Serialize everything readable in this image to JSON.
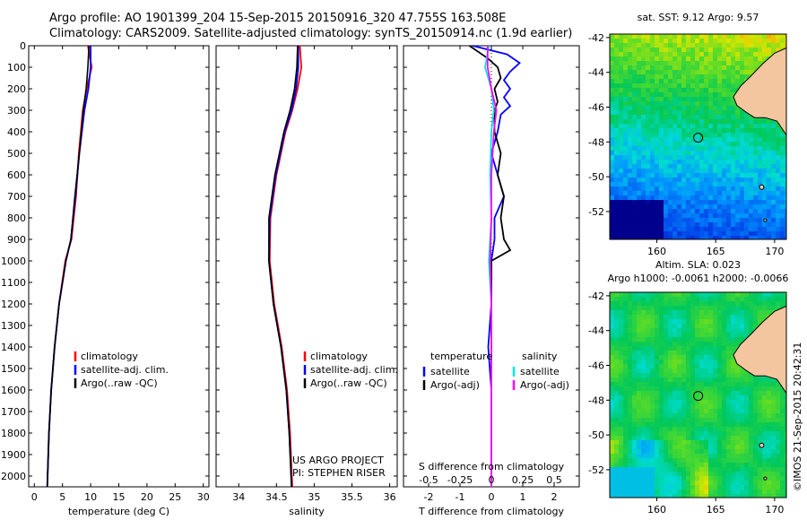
{
  "header": {
    "line1": "Argo profile: AO 1901399_204 15-Sep-2015 20150916_320 47.755S 163.508E",
    "line2": "Climatology: CARS2009. Satellite-adjusted climatology: synTS_20150914.nc (1.9d earlier)"
  },
  "colors": {
    "climatology": "#ff0000",
    "satellite": "#0000ff",
    "argo": "#000000",
    "sal_satellite": "#00e5e5",
    "sal_argo": "#ff00ff",
    "land": "#f4c6a0"
  },
  "depth_ticks": [
    "0",
    "100",
    "200",
    "300",
    "400",
    "500",
    "600",
    "700",
    "800",
    "900",
    "1000",
    "1100",
    "1200",
    "1300",
    "1400",
    "1500",
    "1600",
    "1700",
    "1800",
    "1900",
    "2000"
  ],
  "project_note": {
    "line1": "US ARGO PROJECT",
    "line2": "PI: STEPHEN RISER"
  },
  "chart_data": [
    {
      "type": "line",
      "xlabel": "temperature (deg C)",
      "xlim": [
        -1,
        31
      ],
      "xticks": [
        "0",
        "5",
        "10",
        "15",
        "20",
        "25",
        "30"
      ],
      "ylim": [
        0,
        2050
      ],
      "legend": [
        "climatology",
        "satellite-adj. clim.",
        "Argo(..raw -QC)"
      ],
      "series": [
        {
          "name": "climatology",
          "depth": [
            0,
            100,
            200,
            300,
            500,
            700,
            900,
            1000,
            1200,
            1400,
            1600,
            1800,
            2050
          ],
          "values": [
            9.5,
            10.2,
            9.3,
            8.6,
            7.9,
            7.4,
            6.6,
            5.5,
            4.4,
            3.6,
            3.0,
            2.6,
            2.3
          ]
        },
        {
          "name": "satellite-adj. clim.",
          "depth": [
            0,
            100,
            200,
            300,
            500,
            700,
            900,
            1000,
            1200,
            1400,
            1600,
            1800,
            2050
          ],
          "values": [
            10.0,
            10.0,
            9.6,
            8.9,
            8.0,
            7.3,
            6.5,
            5.6,
            4.4,
            3.6,
            3.0,
            2.6,
            2.3
          ]
        },
        {
          "name": "Argo(..raw -QC)",
          "depth": [
            0,
            100,
            200,
            300,
            500,
            700,
            900,
            1000,
            1200,
            1400,
            1600,
            1800,
            2050
          ],
          "values": [
            9.7,
            9.5,
            9.2,
            8.7,
            8.0,
            7.2,
            6.5,
            5.6,
            4.4,
            3.6,
            3.0,
            2.6,
            2.3
          ]
        }
      ]
    },
    {
      "type": "line",
      "xlabel": "salinity",
      "xlim": [
        33.7,
        36.1
      ],
      "xticks": [
        "34",
        "34.5",
        "35",
        "35.5",
        "36"
      ],
      "ylim": [
        0,
        2050
      ],
      "legend": [
        "climatology",
        "satellite-adj. clim.",
        "Argo(..raw -QC)"
      ],
      "series": [
        {
          "name": "climatology",
          "depth": [
            0,
            100,
            200,
            300,
            400,
            600,
            800,
            1000,
            1200,
            1400,
            1600,
            1800,
            2050
          ],
          "values": [
            34.81,
            34.83,
            34.78,
            34.71,
            34.62,
            34.5,
            34.42,
            34.41,
            34.47,
            34.57,
            34.64,
            34.68,
            34.71
          ]
        },
        {
          "name": "satellite-adj. clim.",
          "depth": [
            0,
            100,
            200,
            300,
            400,
            600,
            800,
            1000,
            1200,
            1400,
            1600,
            1800,
            2050
          ],
          "values": [
            34.79,
            34.79,
            34.76,
            34.7,
            34.61,
            34.49,
            34.41,
            34.4,
            34.46,
            34.56,
            34.63,
            34.67,
            34.7
          ]
        },
        {
          "name": "Argo(..raw -QC)",
          "depth": [
            0,
            100,
            200,
            300,
            400,
            600,
            800,
            1000,
            1200,
            1400,
            1600,
            1800,
            2050
          ],
          "values": [
            34.78,
            34.77,
            34.74,
            34.68,
            34.6,
            34.48,
            34.4,
            34.4,
            34.46,
            34.56,
            34.63,
            34.67,
            34.7
          ]
        }
      ]
    },
    {
      "type": "line",
      "xlabel": "T difference from climatology",
      "xlabel_top": "S difference from climatology",
      "xlim": [
        -2.8,
        2.8
      ],
      "xticks": [
        "-2",
        "-1",
        "0",
        "1",
        "2"
      ],
      "xticks_top": [
        "-0.5",
        "-0.25",
        "0",
        "0.25",
        "0.5"
      ],
      "ylim": [
        0,
        2050
      ],
      "legend_headers": [
        "temperature",
        "salinity"
      ],
      "legend": [
        "satellite",
        "Argo(-adj)",
        "satellite",
        "Argo(-adj)"
      ],
      "series": [
        {
          "name": "temperature satellite",
          "depth": [
            0,
            40,
            80,
            120,
            160,
            200,
            240,
            280,
            320,
            400,
            500,
            600,
            700,
            800,
            900,
            1000,
            1200,
            1400,
            1600,
            1800,
            2050
          ],
          "values": [
            -0.6,
            0.5,
            0.9,
            0.6,
            0.4,
            0.6,
            0.4,
            0.6,
            0.3,
            0.2,
            0.0,
            0.2,
            0.4,
            0.1,
            0.1,
            0.0,
            0.0,
            -0.1,
            0.0,
            0.0,
            0.0
          ]
        },
        {
          "name": "temperature Argo(-adj)",
          "depth": [
            0,
            60,
            100,
            150,
            200,
            260,
            300,
            400,
            500,
            600,
            700,
            800,
            900,
            950,
            1000,
            1200,
            1400,
            1600,
            1800,
            2050
          ],
          "values": [
            -0.7,
            -0.1,
            0.2,
            0.3,
            0.1,
            0.2,
            0.1,
            0.1,
            0.3,
            0.2,
            0.4,
            0.3,
            0.4,
            0.6,
            0.0,
            0.0,
            0.0,
            0.0,
            0.0,
            0.0
          ]
        },
        {
          "name": "salinity satellite",
          "depth": [
            0,
            100,
            200,
            300,
            400,
            600,
            800,
            1000,
            1200,
            1400,
            1600,
            1800,
            2050
          ],
          "values": [
            -0.02,
            -0.05,
            0.0,
            0.02,
            0.0,
            -0.01,
            0.0,
            -0.02,
            0.0,
            0.0,
            0.0,
            0.0,
            0.0
          ]
        },
        {
          "name": "salinity Argo(-adj)",
          "depth": [
            0,
            100,
            200,
            300,
            400,
            600,
            800,
            1000,
            1200,
            1400,
            1600,
            1800,
            2050
          ],
          "values": [
            -0.03,
            -0.03,
            0.0,
            0.04,
            0.02,
            0.0,
            0.0,
            -0.01,
            0.0,
            0.0,
            0.0,
            0.0,
            0.0
          ]
        }
      ]
    },
    {
      "type": "heatmap",
      "title": "sat. SST: 9.12 Argo: 9.57",
      "xlim": [
        156,
        171
      ],
      "ylim": [
        -54,
        -42
      ],
      "xticks": [
        "160",
        "165",
        "170"
      ],
      "yticks": [
        "-42",
        "-44",
        "-46",
        "-48",
        "-50",
        "-52"
      ],
      "marker": {
        "lon": 163.508,
        "lat": -47.755
      }
    },
    {
      "type": "heatmap",
      "title": "Altim. SLA: 0.023",
      "subtitle": "Argo h1000: -0.0061 h2000: -0.0066",
      "xlim": [
        156,
        171
      ],
      "ylim": [
        -54,
        -42
      ],
      "xticks": [
        "160",
        "165",
        "170"
      ],
      "yticks": [
        "-42",
        "-44",
        "-46",
        "-48",
        "-50",
        "-52"
      ],
      "marker": {
        "lon": 163.508,
        "lat": -47.755
      }
    }
  ],
  "footer": {
    "stamp": "©IMOS 21-Sep-2015 20:42:31"
  }
}
